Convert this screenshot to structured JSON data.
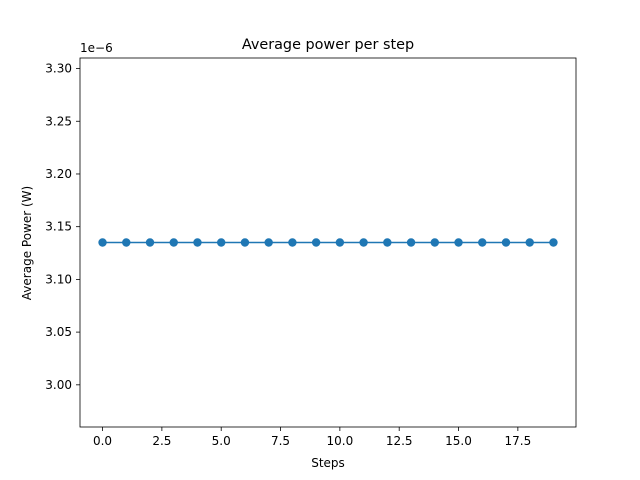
{
  "chart_data": {
    "type": "line",
    "title": "Average power per step",
    "xlabel": "Steps",
    "ylabel": "Average Power (W)",
    "y_offset_label": "1e−6",
    "grid": false,
    "legend": "none",
    "xlim": [
      -0.95,
      19.95
    ],
    "ylim": [
      2.96,
      3.31
    ],
    "x_ticks": [
      0,
      2.5,
      5,
      7.5,
      10,
      12.5,
      15,
      17.5
    ],
    "x_tick_labels": [
      "0.0",
      "2.5",
      "5.0",
      "7.5",
      "10.0",
      "12.5",
      "15.0",
      "17.5"
    ],
    "y_ticks": [
      3.0,
      3.05,
      3.1,
      3.15,
      3.2,
      3.25,
      3.3
    ],
    "y_tick_labels": [
      "3.00",
      "3.05",
      "3.10",
      "3.15",
      "3.20",
      "3.25",
      "3.30"
    ],
    "series": [
      {
        "color": "#1f77b4",
        "marker": "circle",
        "x": [
          0,
          1,
          2,
          3,
          4,
          5,
          6,
          7,
          8,
          9,
          10,
          11,
          12,
          13,
          14,
          15,
          16,
          17,
          18,
          19
        ],
        "y": [
          3.135,
          3.135,
          3.135,
          3.135,
          3.135,
          3.135,
          3.135,
          3.135,
          3.135,
          3.135,
          3.135,
          3.135,
          3.135,
          3.135,
          3.135,
          3.135,
          3.135,
          3.135,
          3.135,
          3.135
        ]
      }
    ]
  }
}
